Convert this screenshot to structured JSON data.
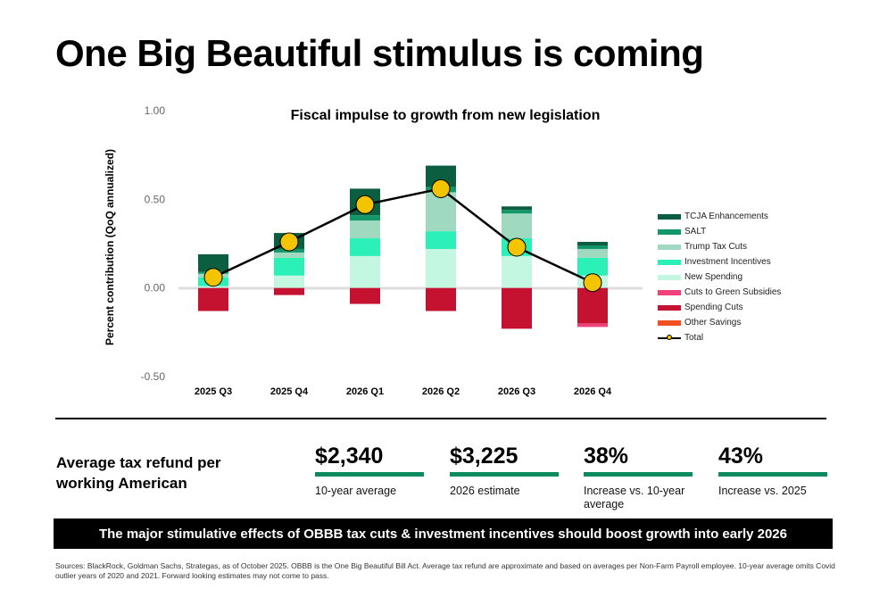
{
  "page": {
    "title": "One Big Beautiful stimulus is coming",
    "stats_label": "Average tax refund per working American",
    "stats": [
      {
        "value": "$2,340",
        "desc": "10-year average"
      },
      {
        "value": "$3,225",
        "desc": "2026 estimate"
      },
      {
        "value": "38%",
        "desc": "Increase vs. 10-year average"
      },
      {
        "value": "43%",
        "desc": "Increase vs. 2025"
      }
    ],
    "banner": "The major stimulative effects of OBBB tax cuts & investment incentives should boost growth into early 2026",
    "sources": "Sources: BlackRock, Goldman Sachs, Strategas, as of October 2025. OBBB is the One Big Beautiful Bill Act. Average tax refund are approximate and based on averages per Non-Farm Payroll employee. 10-year average omits Covid outlier years of 2020 and 2021. Forward looking estimates may not come to pass."
  },
  "chart_data": {
    "type": "bar",
    "stacked": true,
    "title": "Fiscal impulse to growth from new legislation",
    "xlabel": "",
    "ylabel": "Percent contribution  (QoQ annualized)",
    "ylim": [
      -0.5,
      1.0
    ],
    "yticks": [
      "1.00",
      "0.50",
      "0.00",
      "-0.50"
    ],
    "categories": [
      "2025 Q3",
      "2025 Q4",
      "2026 Q1",
      "2026 Q2",
      "2026 Q3",
      "2026 Q4"
    ],
    "series": [
      {
        "name": "New Spending",
        "color": "#c4f7e2",
        "values": [
          0.01,
          0.07,
          0.18,
          0.22,
          0.18,
          0.07
        ]
      },
      {
        "name": "Investment Incentives",
        "color": "#2bf0b8",
        "values": [
          0.05,
          0.1,
          0.1,
          0.1,
          0.1,
          0.1
        ]
      },
      {
        "name": "Trump Tax Cuts",
        "color": "#9fd9bf",
        "values": [
          0.02,
          0.03,
          0.1,
          0.22,
          0.14,
          0.05
        ]
      },
      {
        "name": "SALT",
        "color": "#12966a",
        "values": [
          0.01,
          0.02,
          0.03,
          0.03,
          0.02,
          0.02
        ]
      },
      {
        "name": "TCJA Enhancements",
        "color": "#0b5e3f",
        "values": [
          0.1,
          0.09,
          0.15,
          0.12,
          0.02,
          0.02
        ]
      },
      {
        "name": "Spending Cuts",
        "color": "#c41230",
        "values": [
          -0.13,
          -0.04,
          -0.09,
          -0.13,
          -0.23,
          -0.2
        ]
      },
      {
        "name": "Cuts to Green Subsidies",
        "color": "#f0417a",
        "values": [
          0.0,
          0.0,
          0.0,
          0.0,
          0.0,
          -0.02
        ]
      },
      {
        "name": "Other Savings",
        "color": "#f25022",
        "values": [
          0.0,
          0.0,
          0.0,
          0.0,
          0.0,
          0.0
        ]
      }
    ],
    "total": {
      "name": "Total",
      "values": [
        0.06,
        0.26,
        0.47,
        0.56,
        0.23,
        0.03
      ]
    },
    "legend": [
      "TCJA Enhancements",
      "SALT",
      "Trump Tax Cuts",
      "Investment Incentives",
      "New Spending",
      "Cuts to Green Subsidies",
      "Spending Cuts",
      "Other Savings",
      "Total"
    ],
    "legend_position": "right"
  }
}
